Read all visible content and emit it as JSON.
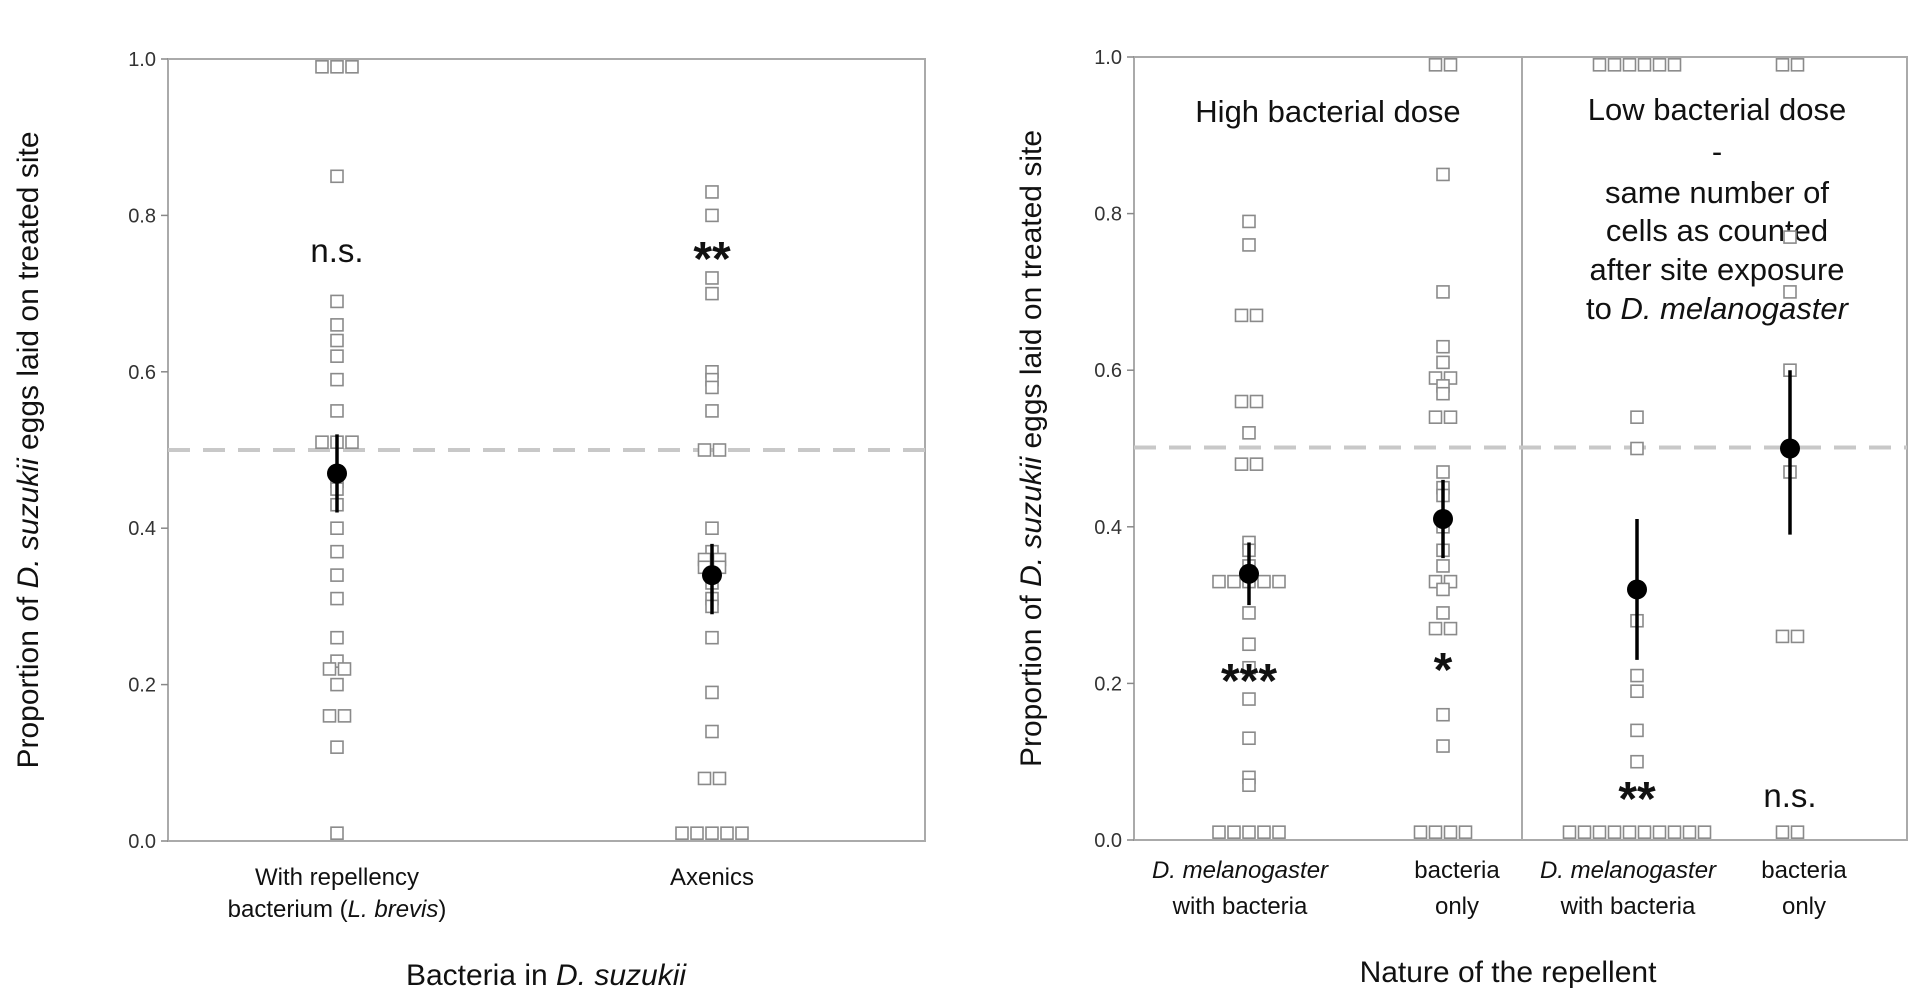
{
  "chart_data": [
    {
      "type": "scatter",
      "title": "",
      "ylabel_parts": [
        "Proportion of ",
        "D. suzukii",
        " eggs laid on treated site"
      ],
      "xlabel_parts": [
        "Bacteria in ",
        "D. suzukii"
      ],
      "ylim": [
        0,
        1
      ],
      "yticks": [
        "0.0",
        "0.2",
        "0.4",
        "0.6",
        "0.8",
        "1.0"
      ],
      "reference_line": 0.5,
      "grid": false,
      "categories": [
        {
          "label_line1": "With repellency",
          "label_line2_parts": [
            "bacterium (",
            "L. brevis",
            ")"
          ],
          "significance": "n.s.",
          "mean": 0.47,
          "ci": [
            0.42,
            0.52
          ],
          "points": [
            0.99,
            0.99,
            0.99,
            0.85,
            0.69,
            0.66,
            0.64,
            0.62,
            0.59,
            0.55,
            0.51,
            0.51,
            0.51,
            0.46,
            0.45,
            0.43,
            0.4,
            0.37,
            0.34,
            0.31,
            0.26,
            0.23,
            0.22,
            0.22,
            0.2,
            0.16,
            0.16,
            0.12,
            0.01
          ]
        },
        {
          "label_line1": "Axenics",
          "significance": "**",
          "mean": 0.34,
          "ci": [
            0.29,
            0.38
          ],
          "points": [
            0.83,
            0.8,
            0.72,
            0.7,
            0.6,
            0.59,
            0.58,
            0.55,
            0.5,
            0.5,
            0.4,
            0.37,
            0.36,
            0.36,
            0.35,
            0.35,
            0.34,
            0.33,
            0.31,
            0.3,
            0.26,
            0.19,
            0.14,
            0.08,
            0.08,
            0.01,
            0.01,
            0.01,
            0.01,
            0.01
          ]
        }
      ]
    },
    {
      "type": "scatter",
      "title": "",
      "ylabel_parts": [
        "Proportion of ",
        "D. suzukii",
        " eggs laid on treated site"
      ],
      "xlabel": "Nature of the repellent",
      "ylim": [
        0,
        1
      ],
      "yticks": [
        "0.0",
        "0.2",
        "0.4",
        "0.6",
        "0.8",
        "1.0"
      ],
      "reference_line": 0.5,
      "grid": false,
      "panels": [
        {
          "title_lines": [
            [
              "High bacterial dose"
            ]
          ]
        },
        {
          "title_lines": [
            [
              "Low bacterial dose"
            ],
            [
              "-"
            ],
            [
              "same number of"
            ],
            [
              "cells as counted"
            ],
            [
              "after site exposure"
            ],
            [
              "to ",
              "D. melanogaster"
            ]
          ]
        }
      ],
      "categories": [
        {
          "label_line1_parts": [
            "D. melanogaster"
          ],
          "label_line2": "with bacteria",
          "significance": "***",
          "mean": 0.34,
          "ci": [
            0.3,
            0.38
          ],
          "points": [
            0.79,
            0.76,
            0.67,
            0.67,
            0.56,
            0.56,
            0.52,
            0.48,
            0.48,
            0.38,
            0.37,
            0.35,
            0.33,
            0.33,
            0.33,
            0.33,
            0.33,
            0.29,
            0.25,
            0.22,
            0.18,
            0.13,
            0.08,
            0.07,
            0.01,
            0.01,
            0.01,
            0.01,
            0.01
          ]
        },
        {
          "label_line1": "bacteria",
          "label_line2": "only",
          "significance": "*",
          "mean": 0.41,
          "ci": [
            0.36,
            0.46
          ],
          "points": [
            0.99,
            0.99,
            0.85,
            0.7,
            0.63,
            0.61,
            0.59,
            0.59,
            0.58,
            0.57,
            0.54,
            0.54,
            0.47,
            0.45,
            0.44,
            0.4,
            0.37,
            0.35,
            0.33,
            0.33,
            0.32,
            0.29,
            0.27,
            0.27,
            0.16,
            0.12,
            0.01,
            0.01,
            0.01,
            0.01
          ]
        },
        {
          "label_line1_parts": [
            "D. melanogaster"
          ],
          "label_line2": "with bacteria",
          "significance": "**",
          "mean": 0.32,
          "ci": [
            0.23,
            0.41
          ],
          "points": [
            0.99,
            0.99,
            0.99,
            0.99,
            0.99,
            0.99,
            0.54,
            0.5,
            0.28,
            0.21,
            0.19,
            0.14,
            0.1,
            0.01,
            0.01,
            0.01,
            0.01,
            0.01,
            0.01,
            0.01,
            0.01,
            0.01,
            0.01
          ]
        },
        {
          "label_line1": "bacteria",
          "label_line2": "only",
          "significance": "n.s.",
          "mean": 0.5,
          "ci": [
            0.39,
            0.6
          ],
          "points": [
            0.99,
            0.99,
            0.77,
            0.7,
            0.6,
            0.5,
            0.47,
            0.26,
            0.26,
            0.01,
            0.01
          ]
        }
      ]
    }
  ]
}
